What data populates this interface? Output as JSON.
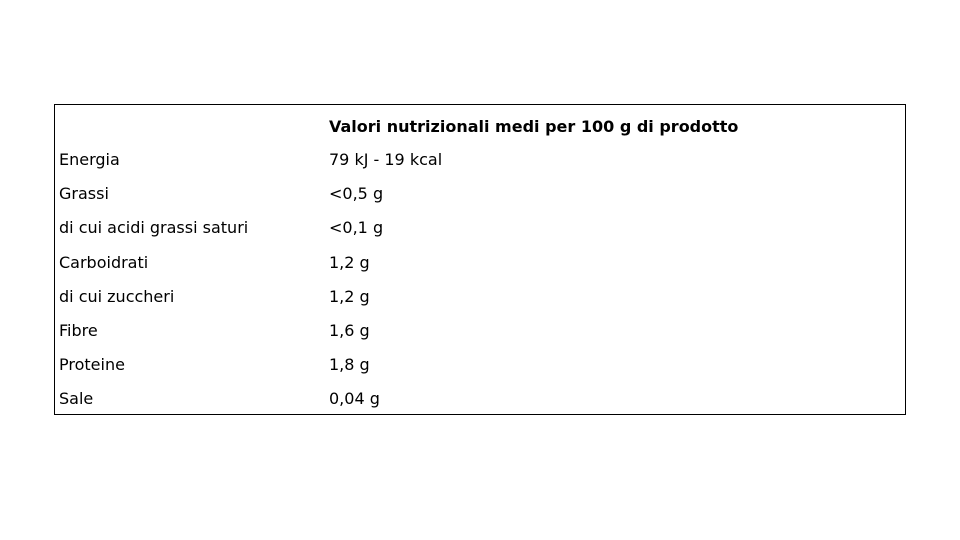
{
  "table": {
    "title": "Valori nutrizionali medi per 100 g di prodotto",
    "rows": [
      [
        "Energia",
        "79 kJ - 19 kcal"
      ],
      [
        "Grassi",
        "<0,5 g"
      ],
      [
        "di cui acidi grassi saturi",
        "<0,1 g"
      ],
      [
        "Carboidrati",
        "1,2 g"
      ],
      [
        "di cui zuccheri",
        "1,2 g"
      ],
      [
        "Fibre",
        "1,6 g"
      ],
      [
        "Proteine",
        "1,8 g"
      ],
      [
        "Sale",
        "0,04 g"
      ]
    ]
  }
}
